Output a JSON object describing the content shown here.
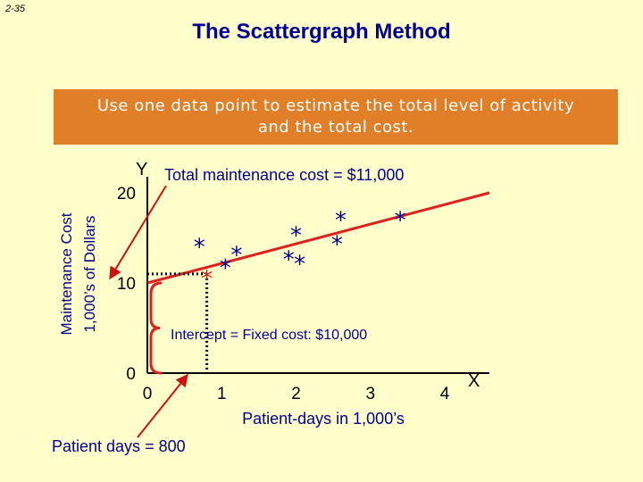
{
  "slide_number": "2-35",
  "title": "The Scattergraph Method",
  "banner": {
    "line1": "Use one data point to estimate the total level of activity",
    "line2": "and the total cost."
  },
  "y_axis_label": {
    "line1": "Maintenance Cost",
    "line2": "1,000’s of Dollars"
  },
  "colors": {
    "title": "#000099",
    "banner": "#e07f27",
    "line": "#e02020",
    "background": "#ffffcc"
  },
  "chart_data": {
    "type": "scatter",
    "x_axis_letter": "X",
    "y_axis_letter": "Y",
    "xlabel": "Patient-days in 1,000’s",
    "xticks": [
      "0",
      "1",
      "2",
      "3",
      "4"
    ],
    "yticks": [
      "0",
      "10",
      "20"
    ],
    "xlim": [
      0,
      4.6
    ],
    "ylim": [
      0,
      20
    ],
    "marker": "*",
    "points": [
      {
        "x": 0.7,
        "y": 14.5
      },
      {
        "x": 1.05,
        "y": 12.2
      },
      {
        "x": 1.2,
        "y": 13.6
      },
      {
        "x": 1.9,
        "y": 13.1
      },
      {
        "x": 2.05,
        "y": 12.6
      },
      {
        "x": 2.0,
        "y": 15.8
      },
      {
        "x": 2.55,
        "y": 14.8
      },
      {
        "x": 2.6,
        "y": 17.5
      },
      {
        "x": 3.4,
        "y": 17.5
      }
    ],
    "fit_line": {
      "x": [
        0,
        4.6
      ],
      "y": [
        10,
        20
      ]
    },
    "estimate_point": {
      "x": 0.8,
      "y": 11
    },
    "annotations": {
      "total_cost": "Total maintenance cost = $11,000",
      "intercept": "Intercept = Fixed cost: $10,000",
      "patient_days": "Patient days = 800"
    }
  }
}
